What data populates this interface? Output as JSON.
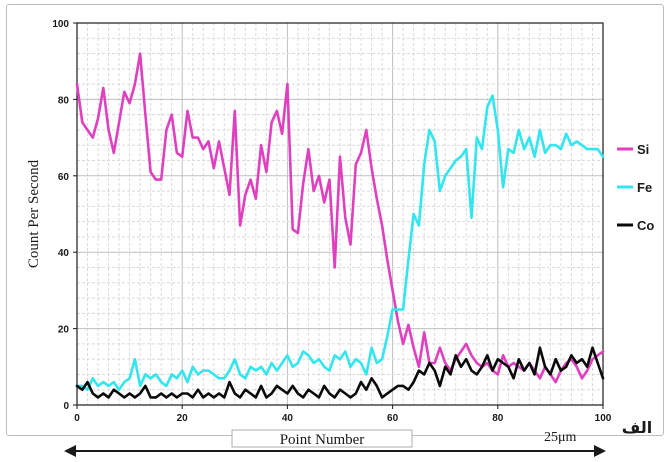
{
  "chart_data": {
    "type": "line",
    "xlabel": "Point Number",
    "ylabel": "Count Per Second",
    "xlim": [
      0,
      100
    ],
    "ylim": [
      0,
      100
    ],
    "xticks": [
      0,
      20,
      40,
      60,
      80,
      100
    ],
    "yticks": [
      0,
      20,
      40,
      60,
      80,
      100
    ],
    "grid": true,
    "legend_position": "right",
    "scale_bar_label": "25μm",
    "panel_label": "الف",
    "series": [
      {
        "name": "Si",
        "color": "#e040c0",
        "x": [
          0,
          1,
          2,
          3,
          4,
          5,
          6,
          7,
          8,
          9,
          10,
          11,
          12,
          13,
          14,
          15,
          16,
          17,
          18,
          19,
          20,
          21,
          22,
          23,
          24,
          25,
          26,
          27,
          28,
          29,
          30,
          31,
          32,
          33,
          34,
          35,
          36,
          37,
          38,
          39,
          40,
          41,
          42,
          43,
          44,
          45,
          46,
          47,
          48,
          49,
          50,
          51,
          52,
          53,
          54,
          55,
          56,
          57,
          58,
          59,
          60,
          61,
          62,
          63,
          64,
          65,
          66,
          67,
          68,
          69,
          70,
          71,
          72,
          73,
          74,
          75,
          76,
          77,
          78,
          79,
          80,
          81,
          82,
          83,
          84,
          85,
          86,
          87,
          88,
          89,
          90,
          91,
          92,
          93,
          94,
          95,
          96,
          97,
          98,
          99,
          100
        ],
        "values": [
          84,
          74,
          72,
          70,
          75,
          83,
          72,
          66,
          74,
          82,
          79,
          84,
          92,
          76,
          61,
          59,
          59,
          72,
          76,
          66,
          65,
          77,
          70,
          70,
          67,
          69,
          62,
          69,
          62,
          55,
          77,
          47,
          55,
          59,
          54,
          68,
          61,
          74,
          77,
          71,
          84,
          46,
          45,
          58,
          67,
          56,
          60,
          53,
          59,
          36,
          65,
          49,
          42,
          63,
          66,
          72,
          62,
          54,
          47,
          38,
          30,
          22,
          16,
          21,
          15,
          10,
          19,
          11,
          11,
          15,
          11,
          9,
          12,
          14,
          16,
          13,
          11,
          10,
          11,
          9,
          8,
          13,
          10,
          11,
          10,
          9,
          11,
          9,
          7,
          10,
          8,
          6,
          9,
          11,
          12,
          10,
          7,
          9,
          12,
          13,
          14
        ]
      },
      {
        "name": "Fe",
        "color": "#33e5ee",
        "x": [
          0,
          1,
          2,
          3,
          4,
          5,
          6,
          7,
          8,
          9,
          10,
          11,
          12,
          13,
          14,
          15,
          16,
          17,
          18,
          19,
          20,
          21,
          22,
          23,
          24,
          25,
          26,
          27,
          28,
          29,
          30,
          31,
          32,
          33,
          34,
          35,
          36,
          37,
          38,
          39,
          40,
          41,
          42,
          43,
          44,
          45,
          46,
          47,
          48,
          49,
          50,
          51,
          52,
          53,
          54,
          55,
          56,
          57,
          58,
          59,
          60,
          61,
          62,
          63,
          64,
          65,
          66,
          67,
          68,
          69,
          70,
          71,
          72,
          73,
          74,
          75,
          76,
          77,
          78,
          79,
          80,
          81,
          82,
          83,
          84,
          85,
          86,
          87,
          88,
          89,
          90,
          91,
          92,
          93,
          94,
          95,
          96,
          97,
          98,
          99,
          100
        ],
        "values": [
          5,
          5,
          4,
          7,
          5,
          6,
          5,
          6,
          4,
          6,
          7,
          12,
          5,
          8,
          7,
          8,
          6,
          5,
          8,
          7,
          9,
          6,
          10,
          8,
          9,
          9,
          8,
          7,
          7,
          9,
          12,
          8,
          7,
          10,
          9,
          10,
          8,
          11,
          9,
          11,
          13,
          10,
          11,
          14,
          13,
          11,
          12,
          10,
          9,
          13,
          12,
          14,
          10,
          12,
          11,
          8,
          15,
          11,
          12,
          18,
          25,
          25,
          25,
          38,
          50,
          47,
          63,
          72,
          69,
          56,
          60,
          62,
          64,
          65,
          67,
          49,
          70,
          67,
          78,
          81,
          72,
          57,
          67,
          66,
          72,
          67,
          70,
          65,
          72,
          66,
          68,
          68,
          67,
          71,
          68,
          69,
          68,
          67,
          67,
          67,
          65
        ]
      },
      {
        "name": "Co",
        "color": "#0a0a0a",
        "x": [
          0,
          1,
          2,
          3,
          4,
          5,
          6,
          7,
          8,
          9,
          10,
          11,
          12,
          13,
          14,
          15,
          16,
          17,
          18,
          19,
          20,
          21,
          22,
          23,
          24,
          25,
          26,
          27,
          28,
          29,
          30,
          31,
          32,
          33,
          34,
          35,
          36,
          37,
          38,
          39,
          40,
          41,
          42,
          43,
          44,
          45,
          46,
          47,
          48,
          49,
          50,
          51,
          52,
          53,
          54,
          55,
          56,
          57,
          58,
          59,
          60,
          61,
          62,
          63,
          64,
          65,
          66,
          67,
          68,
          69,
          70,
          71,
          72,
          73,
          74,
          75,
          76,
          77,
          78,
          79,
          80,
          81,
          82,
          83,
          84,
          85,
          86,
          87,
          88,
          89,
          90,
          91,
          92,
          93,
          94,
          95,
          96,
          97,
          98,
          99,
          100
        ],
        "values": [
          5,
          4,
          6,
          3,
          2,
          3,
          2,
          4,
          3,
          2,
          3,
          2,
          3,
          5,
          2,
          2,
          3,
          2,
          3,
          2,
          3,
          3,
          2,
          4,
          2,
          3,
          2,
          3,
          2,
          6,
          3,
          2,
          4,
          3,
          2,
          5,
          2,
          3,
          5,
          4,
          3,
          5,
          3,
          2,
          4,
          3,
          2,
          5,
          3,
          2,
          4,
          3,
          2,
          3,
          6,
          4,
          7,
          5,
          2,
          3,
          4,
          5,
          5,
          4,
          6,
          9,
          8,
          11,
          9,
          5,
          10,
          8,
          13,
          10,
          12,
          9,
          8,
          10,
          13,
          9,
          12,
          11,
          10,
          7,
          12,
          9,
          11,
          8,
          15,
          10,
          8,
          12,
          9,
          10,
          13,
          11,
          12,
          10,
          15,
          11,
          7
        ]
      }
    ]
  }
}
